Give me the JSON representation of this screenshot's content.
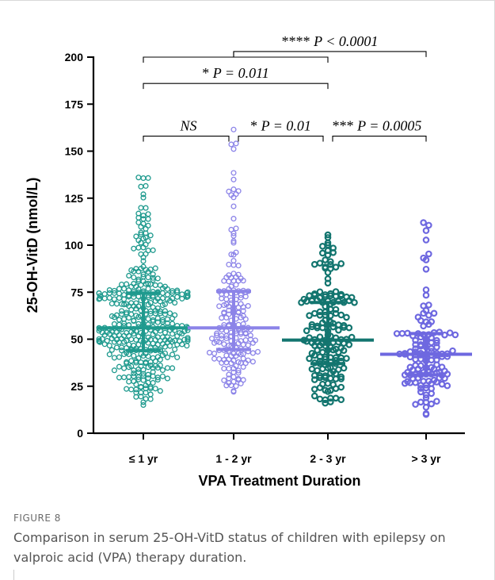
{
  "chart_data": {
    "type": "scatter",
    "ylabel": "25-OH-VitD (nmol/L)",
    "xlabel": "VPA Treatment Duration",
    "ylim": [
      0,
      200
    ],
    "yticks": [
      0,
      25,
      50,
      75,
      100,
      125,
      150,
      175,
      200
    ],
    "categories": [
      "≤ 1 yr",
      "1 - 2 yr",
      "2 - 3 yr",
      "> 3 yr"
    ],
    "groups": [
      {
        "category": "≤ 1 yr",
        "median": 56,
        "q1": 44,
        "q3": 74.5,
        "min": 15,
        "max": 136,
        "n": 420,
        "color": "#1f9a8e"
      },
      {
        "category": "1 - 2 yr",
        "median": 56,
        "q1": 44.5,
        "q3": 75.5,
        "min": 22,
        "max": 161.5,
        "n": 190,
        "color": "#8c84e8"
      },
      {
        "category": "2 - 3 yr",
        "median": 49.5,
        "q1": 37,
        "q3": 69.5,
        "min": 16,
        "max": 105.5,
        "n": 170,
        "color": "#13756f"
      },
      {
        "category": "> 3 yr",
        "median": 42,
        "q1": 31,
        "q3": 53,
        "min": 10,
        "max": 112,
        "n": 130,
        "color": "#6e68e0"
      }
    ],
    "comparisons": [
      {
        "from": "≤ 1 yr",
        "to": "1 - 2 yr",
        "stars": "",
        "label": "NS",
        "y": 158
      },
      {
        "from": "1 - 2 yr",
        "to": "2 - 3 yr",
        "stars": "*",
        "label": "P = 0.01",
        "y": 158
      },
      {
        "from": "2 - 3 yr",
        "to": "> 3 yr",
        "stars": "***",
        "label": "P = 0.0005",
        "y": 158
      },
      {
        "from": "≤ 1 yr",
        "to": "2 - 3 yr",
        "stars": "*",
        "label": "P = 0.011",
        "y": 186
      },
      {
        "from": "≤ 1 yr",
        "to": "2 - 3 yr",
        "stars": "",
        "label": "",
        "y": 200
      },
      {
        "from": "1 - 2 yr",
        "to": "> 3 yr",
        "stars": "****",
        "label": "P < 0.0001",
        "y": 203
      }
    ]
  },
  "caption": {
    "label": "FIGURE 8",
    "text": "Comparison in serum 25-OH-VitD status of children with epilepsy on valproic acid (VPA) therapy duration."
  }
}
